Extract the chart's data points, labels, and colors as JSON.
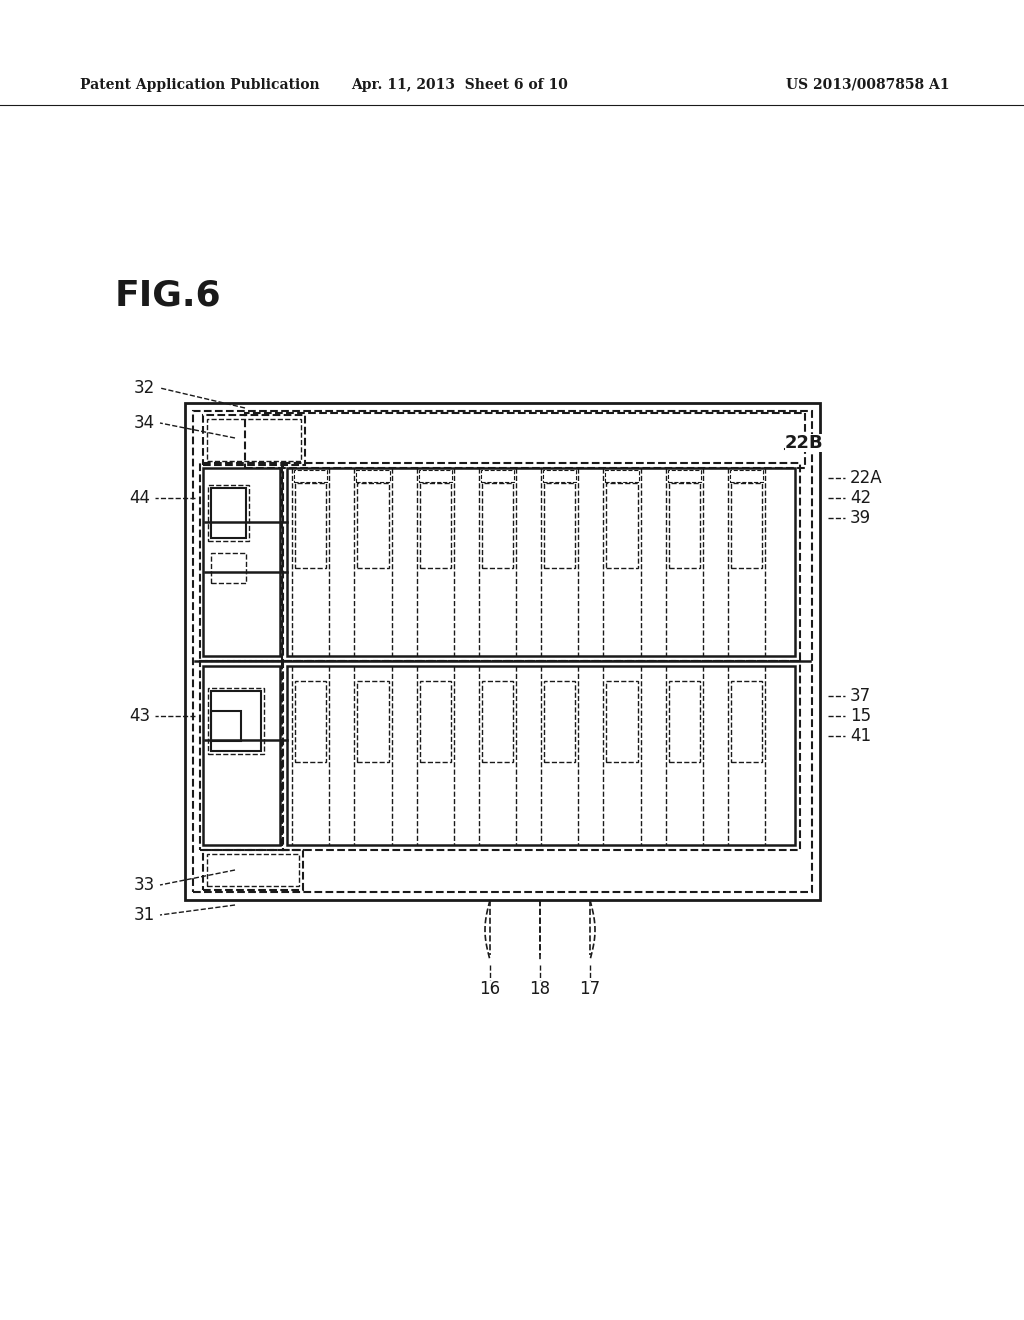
{
  "fig_label": "FIG.6",
  "header_left": "Patent Application Publication",
  "header_center": "Apr. 11, 2013  Sheet 6 of 10",
  "header_right": "US 2013/0087858 A1",
  "bg_color": "#ffffff",
  "line_color": "#1a1a1a"
}
